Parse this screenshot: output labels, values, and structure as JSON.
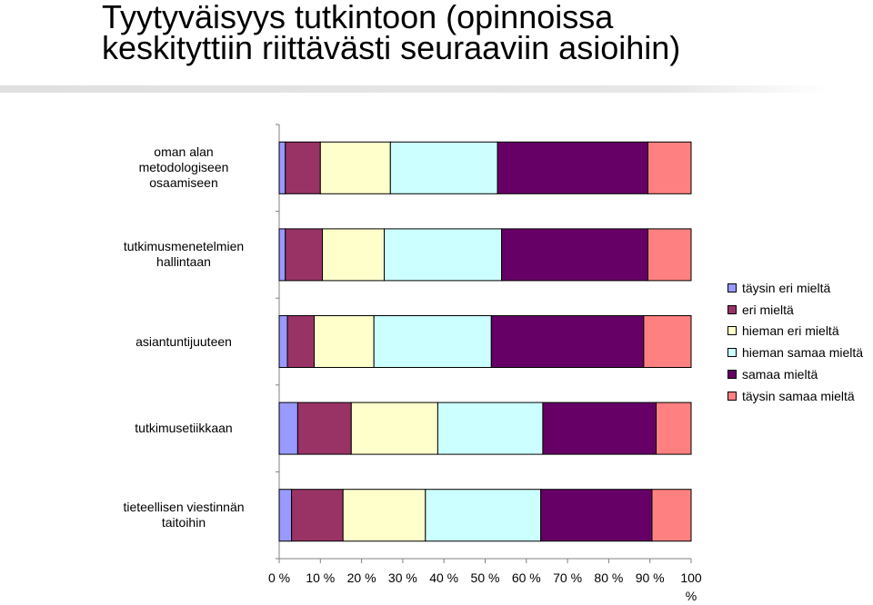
{
  "title_lines": [
    "Tyytyväisyys tutkintoon (opinnoissa",
    "keskityttiin riittävästi seuraaviin asioihin)"
  ],
  "categories": [
    {
      "lines": [
        "oman alan",
        "metodologiseen",
        "osaamiseen"
      ]
    },
    {
      "lines": [
        "tutkimusmenetelmien",
        "hallintaan"
      ]
    },
    {
      "lines": [
        "asiantuntijuuteen"
      ]
    },
    {
      "lines": [
        "tutkimusetiikkaan"
      ]
    },
    {
      "lines": [
        "tieteellisen viestinnän",
        "taitoihin"
      ]
    }
  ],
  "x_ticks": [
    "0 %",
    "10 %",
    "20 %",
    "30 %",
    "40 %",
    "50 %",
    "60 %",
    "70 %",
    "80 %",
    "90 %",
    "100\n%"
  ],
  "chart_data": {
    "type": "bar",
    "orientation": "horizontal",
    "stacked": "percent",
    "title": "Tyytyväisyys tutkintoon (opinnoissa keskityttiin riittävästi seuraaviin asioihin)",
    "categories": [
      "oman alan metodologiseen osaamiseen",
      "tutkimusmenetelmien hallintaan",
      "asiantuntijuuteen",
      "tutkimusetiikkaan",
      "tieteellisen viestinnän taitoihin"
    ],
    "xlim": [
      0,
      100
    ],
    "legend_position": "right",
    "grid": false,
    "series": [
      {
        "name": "täysin eri mieltä",
        "color": "#9999ff",
        "values": [
          1.5,
          1.5,
          2.0,
          4.5,
          3.0
        ]
      },
      {
        "name": "eri mieltä",
        "color": "#993366",
        "values": [
          8.5,
          9.0,
          6.5,
          13.0,
          12.5
        ]
      },
      {
        "name": "hieman eri mieltä",
        "color": "#ffffcc",
        "values": [
          17.0,
          15.0,
          14.5,
          21.0,
          20.0
        ]
      },
      {
        "name": "hieman samaa mieltä",
        "color": "#ccffff",
        "values": [
          26.0,
          28.5,
          28.5,
          25.5,
          28.0
        ]
      },
      {
        "name": "samaa mieltä",
        "color": "#660066",
        "values": [
          36.5,
          35.5,
          37.0,
          27.5,
          27.0
        ]
      },
      {
        "name": "täysin samaa mieltä",
        "color": "#ff8080",
        "values": [
          10.5,
          10.5,
          11.5,
          8.5,
          9.5
        ]
      }
    ]
  }
}
